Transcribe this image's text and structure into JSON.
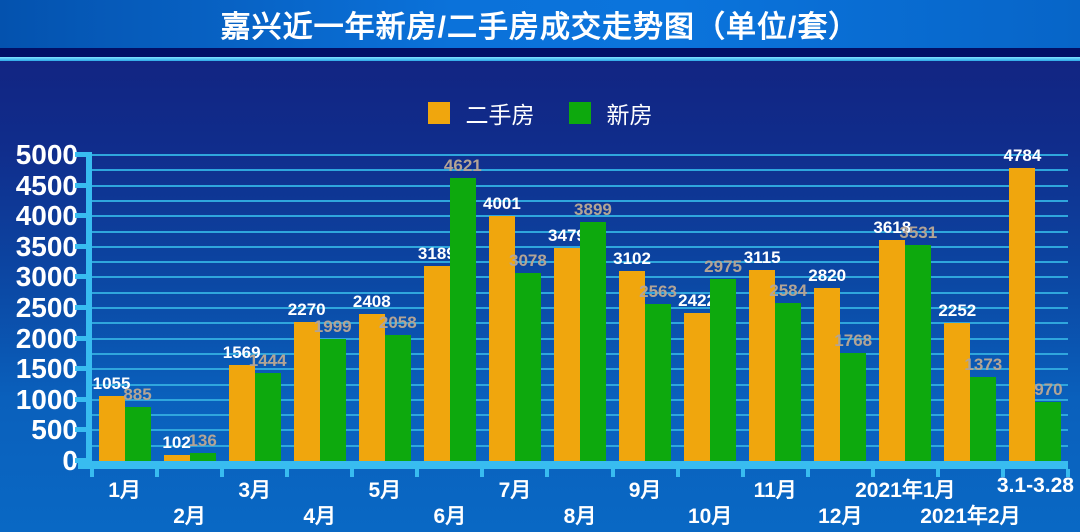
{
  "header": {
    "title": "嘉兴近一年新房/二手房成交走势图（单位/套）"
  },
  "legend": [
    {
      "label": "二手房",
      "color": "#f0a60d"
    },
    {
      "label": "新房",
      "color": "#0da90d"
    }
  ],
  "chart_data": {
    "type": "bar",
    "title": "嘉兴近一年新房/二手房成交走势图（单位/套）",
    "categories": [
      "1月",
      "2月",
      "3月",
      "4月",
      "5月",
      "6月",
      "7月",
      "8月",
      "9月",
      "10月",
      "11月",
      "12月",
      "2021年1月",
      "2021年2月",
      "3.1-3.28"
    ],
    "series": [
      {
        "name": "二手房",
        "color": "#f0a60d",
        "label_color": "#ffffff",
        "values": [
          1055,
          102,
          1569,
          2270,
          2408,
          3189,
          4001,
          3479,
          3102,
          2422,
          3115,
          2820,
          3618,
          2252,
          4784
        ]
      },
      {
        "name": "新房",
        "color": "#0da90d",
        "label_color": "#b3a495",
        "values": [
          885,
          136,
          1444,
          1999,
          2058,
          4621,
          3078,
          3899,
          2563,
          2975,
          2584,
          1768,
          3531,
          1373,
          970
        ]
      }
    ],
    "xlabel": "",
    "ylabel": "",
    "ylim": [
      0,
      5000
    ],
    "y_ticks": [
      0,
      500,
      1000,
      1500,
      2000,
      2500,
      3000,
      3500,
      4000,
      4500,
      5000
    ],
    "grid_interval": 250,
    "grid": true,
    "legend_position": "top",
    "x_label_layout": "staggered-two-rows"
  },
  "colors": {
    "axis": "#38bcf0",
    "gridline": "#2fa6dd",
    "background_top": "#131f7c",
    "background_bottom": "#0968c4",
    "title_bar": "#0b72da",
    "title_divider": "#3ec7f6"
  }
}
